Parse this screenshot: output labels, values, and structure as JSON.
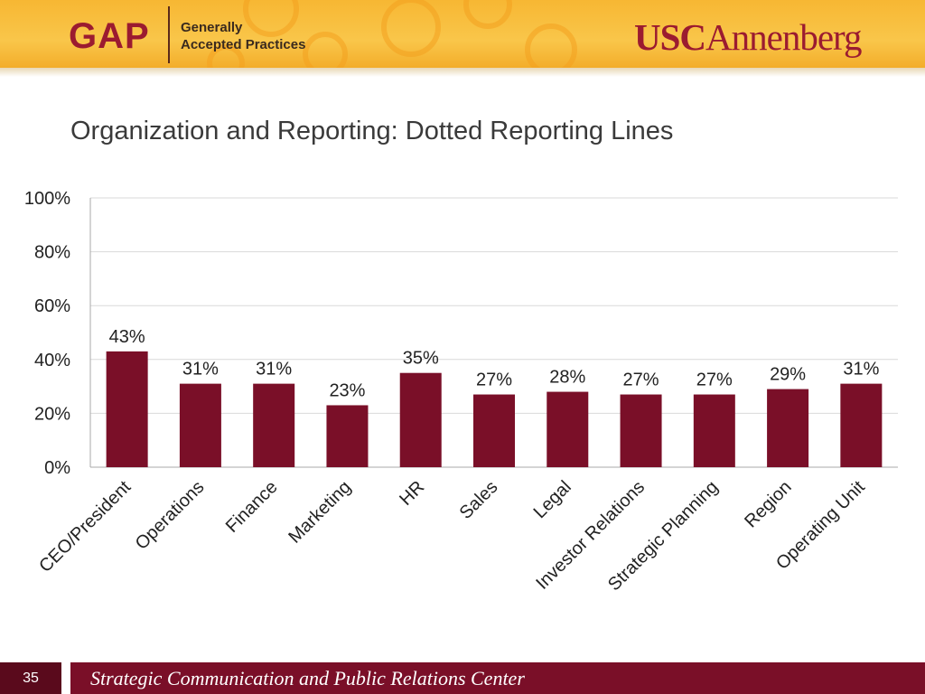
{
  "header": {
    "gap_logo": "GAP",
    "gap_line1": "Generally",
    "gap_line2": "Accepted Practices",
    "usc_part": "USC",
    "annenberg_part": "Annenberg"
  },
  "slide_title": "Organization and Reporting: Dotted Reporting Lines",
  "footer": {
    "page_number": "35",
    "text": "Strategic Communication and Public Relations Center"
  },
  "colors": {
    "bar": "#7a0f28",
    "header": "#f7b733",
    "footer": "#7a0f28"
  },
  "chart_data": {
    "type": "bar",
    "categories": [
      "CEO/President",
      "Operations",
      "Finance",
      "Marketing",
      "HR",
      "Sales",
      "Legal",
      "Investor Relations",
      "Strategic Planning",
      "Region",
      "Operating Unit"
    ],
    "values": [
      43,
      31,
      31,
      23,
      35,
      27,
      28,
      27,
      27,
      29,
      31
    ],
    "data_labels": [
      "43%",
      "31%",
      "31%",
      "23%",
      "35%",
      "27%",
      "28%",
      "27%",
      "27%",
      "29%",
      "31%"
    ],
    "y_ticks": [
      "0%",
      "20%",
      "40%",
      "60%",
      "80%",
      "100%"
    ],
    "ylim": [
      0,
      100
    ],
    "grid": true,
    "legend": "none",
    "title": "",
    "xlabel": "",
    "ylabel": ""
  }
}
